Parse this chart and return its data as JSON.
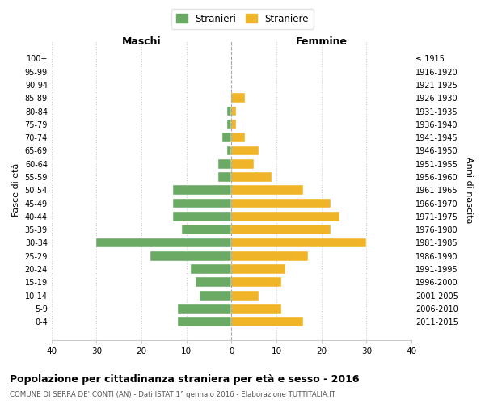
{
  "age_groups": [
    "100+",
    "95-99",
    "90-94",
    "85-89",
    "80-84",
    "75-79",
    "70-74",
    "65-69",
    "60-64",
    "55-59",
    "50-54",
    "45-49",
    "40-44",
    "35-39",
    "30-34",
    "25-29",
    "20-24",
    "15-19",
    "10-14",
    "5-9",
    "0-4"
  ],
  "birth_years": [
    "≤ 1915",
    "1916-1920",
    "1921-1925",
    "1926-1930",
    "1931-1935",
    "1936-1940",
    "1941-1945",
    "1946-1950",
    "1951-1955",
    "1956-1960",
    "1961-1965",
    "1966-1970",
    "1971-1975",
    "1976-1980",
    "1981-1985",
    "1986-1990",
    "1991-1995",
    "1996-2000",
    "2001-2005",
    "2006-2010",
    "2011-2015"
  ],
  "maschi": [
    0,
    0,
    0,
    0,
    1,
    1,
    2,
    1,
    3,
    3,
    13,
    13,
    13,
    11,
    30,
    18,
    9,
    8,
    7,
    12,
    12
  ],
  "femmine": [
    0,
    0,
    0,
    3,
    1,
    1,
    3,
    6,
    5,
    9,
    16,
    22,
    24,
    22,
    30,
    17,
    12,
    11,
    6,
    11,
    16
  ],
  "male_color": "#6aaa64",
  "female_color": "#f0b429",
  "title": "Popolazione per cittadinanza straniera per età e sesso - 2016",
  "subtitle": "COMUNE DI SERRA DE' CONTI (AN) - Dati ISTAT 1° gennaio 2016 - Elaborazione TUTTITALIA.IT",
  "xlabel_left": "Maschi",
  "xlabel_right": "Femmine",
  "ylabel_left": "Fasce di età",
  "ylabel_right": "Anni di nascita",
  "legend_stranieri": "Stranieri",
  "legend_straniere": "Straniere",
  "xlim": 40,
  "bg_color": "#ffffff",
  "grid_color": "#cccccc"
}
